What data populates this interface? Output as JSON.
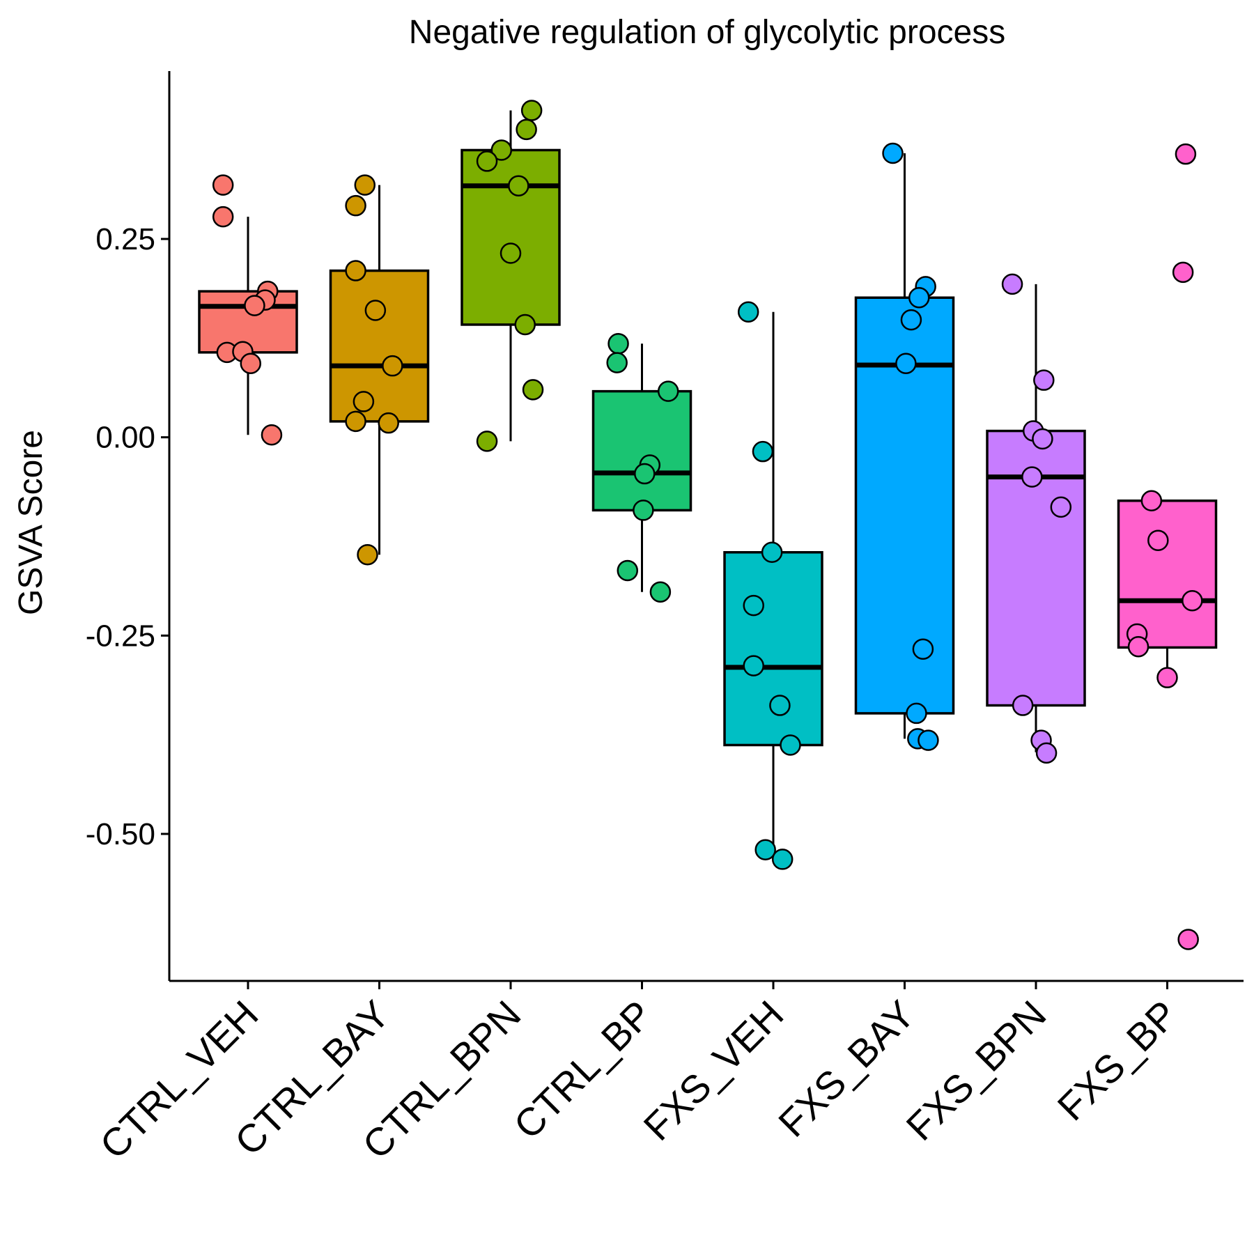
{
  "chart_data": {
    "type": "box",
    "title": "Negative regulation of glycolytic process",
    "xlabel": "",
    "ylabel": "GSVA Score",
    "ylim": [
      -0.68,
      0.47
    ],
    "yticks": [
      0.25,
      0.0,
      -0.25,
      -0.5
    ],
    "ytick_labels": [
      "0.25",
      "0.00",
      "-0.25",
      "-0.50"
    ],
    "grid": false,
    "legend": "none",
    "categories": [
      "CTRL_VEH",
      "CTRL_BAY",
      "CTRL_BPN",
      "CTRL_BP",
      "FXS_VEH",
      "FXS_BAY",
      "FXS_BPN",
      "FXS_BP"
    ],
    "groups": [
      {
        "name": "CTRL_VEH",
        "color": "#F8766D",
        "box": {
          "whisker_low": 0.003,
          "q1": 0.107,
          "median": 0.165,
          "q3": 0.184,
          "whisker_high": 0.278
        },
        "points": [
          {
            "x": -0.19,
            "y": 0.318
          },
          {
            "x": -0.19,
            "y": 0.278
          },
          {
            "x": 0.15,
            "y": 0.184
          },
          {
            "x": 0.13,
            "y": 0.173
          },
          {
            "x": 0.05,
            "y": 0.166
          },
          {
            "x": -0.16,
            "y": 0.107
          },
          {
            "x": -0.04,
            "y": 0.108
          },
          {
            "x": 0.02,
            "y": 0.093
          },
          {
            "x": 0.18,
            "y": 0.003
          }
        ]
      },
      {
        "name": "CTRL_BAY",
        "color": "#CD9600",
        "box": {
          "whisker_low": -0.148,
          "q1": 0.02,
          "median": 0.09,
          "q3": 0.21,
          "whisker_high": 0.318
        },
        "points": [
          {
            "x": -0.11,
            "y": 0.318
          },
          {
            "x": -0.18,
            "y": 0.292
          },
          {
            "x": -0.18,
            "y": 0.21
          },
          {
            "x": -0.03,
            "y": 0.16
          },
          {
            "x": 0.1,
            "y": 0.09
          },
          {
            "x": -0.12,
            "y": 0.045
          },
          {
            "x": -0.18,
            "y": 0.02
          },
          {
            "x": 0.07,
            "y": 0.018
          },
          {
            "x": -0.09,
            "y": -0.148
          }
        ]
      },
      {
        "name": "CTRL_BPN",
        "color": "#7CAE00",
        "box": {
          "whisker_low": -0.005,
          "q1": 0.142,
          "median": 0.317,
          "q3": 0.362,
          "whisker_high": 0.412
        },
        "points": [
          {
            "x": 0.16,
            "y": 0.412
          },
          {
            "x": 0.12,
            "y": 0.388
          },
          {
            "x": -0.07,
            "y": 0.362
          },
          {
            "x": -0.18,
            "y": 0.348
          },
          {
            "x": 0.06,
            "y": 0.317
          },
          {
            "x": 0.0,
            "y": 0.232
          },
          {
            "x": 0.11,
            "y": 0.142
          },
          {
            "x": 0.17,
            "y": 0.06
          },
          {
            "x": -0.18,
            "y": -0.005
          }
        ]
      },
      {
        "name": "CTRL_BP",
        "color": "#0CB702",
        "fill": "#1AC472",
        "box": {
          "whisker_low": -0.195,
          "q1": -0.092,
          "median": -0.045,
          "q3": 0.058,
          "whisker_high": 0.118
        },
        "points": [
          {
            "x": -0.18,
            "y": 0.118
          },
          {
            "x": -0.19,
            "y": 0.094
          },
          {
            "x": 0.2,
            "y": 0.058
          },
          {
            "x": 0.06,
            "y": -0.035
          },
          {
            "x": 0.02,
            "y": -0.046
          },
          {
            "x": 0.01,
            "y": -0.092
          },
          {
            "x": -0.11,
            "y": -0.168
          },
          {
            "x": 0.14,
            "y": -0.195
          }
        ]
      },
      {
        "name": "FXS_VEH",
        "color": "#00BFC4",
        "box": {
          "whisker_low": -0.52,
          "q1": -0.388,
          "median": -0.29,
          "q3": -0.145,
          "whisker_high": 0.158
        },
        "points": [
          {
            "x": -0.19,
            "y": 0.158
          },
          {
            "x": -0.08,
            "y": -0.018
          },
          {
            "x": -0.01,
            "y": -0.145
          },
          {
            "x": -0.15,
            "y": -0.212
          },
          {
            "x": -0.15,
            "y": -0.288
          },
          {
            "x": 0.05,
            "y": -0.338
          },
          {
            "x": 0.13,
            "y": -0.388
          },
          {
            "x": -0.06,
            "y": -0.52
          },
          {
            "x": 0.07,
            "y": -0.532
          }
        ]
      },
      {
        "name": "FXS_BAY",
        "color": "#00A9FF",
        "box": {
          "whisker_low": -0.38,
          "q1": -0.348,
          "median": 0.091,
          "q3": 0.176,
          "whisker_high": 0.358
        },
        "points": [
          {
            "x": -0.09,
            "y": 0.358
          },
          {
            "x": 0.16,
            "y": 0.19
          },
          {
            "x": 0.11,
            "y": 0.176
          },
          {
            "x": 0.05,
            "y": 0.148
          },
          {
            "x": 0.01,
            "y": 0.093
          },
          {
            "x": 0.14,
            "y": -0.267
          },
          {
            "x": 0.09,
            "y": -0.348
          },
          {
            "x": 0.1,
            "y": -0.38
          },
          {
            "x": 0.18,
            "y": -0.382
          }
        ]
      },
      {
        "name": "FXS_BPN",
        "color": "#C77CFF",
        "box": {
          "whisker_low": -0.397,
          "q1": -0.338,
          "median": -0.05,
          "q3": 0.008,
          "whisker_high": 0.193
        },
        "points": [
          {
            "x": -0.18,
            "y": 0.193
          },
          {
            "x": 0.06,
            "y": 0.072
          },
          {
            "x": -0.02,
            "y": 0.008
          },
          {
            "x": 0.05,
            "y": -0.002
          },
          {
            "x": -0.03,
            "y": -0.05
          },
          {
            "x": 0.19,
            "y": -0.088
          },
          {
            "x": -0.1,
            "y": -0.338
          },
          {
            "x": 0.04,
            "y": -0.382
          },
          {
            "x": 0.08,
            "y": -0.398
          }
        ]
      },
      {
        "name": "FXS_BP",
        "color": "#FF61CC",
        "box": {
          "whisker_low": -0.303,
          "q1": -0.265,
          "median": -0.206,
          "q3": -0.08,
          "whisker_high": -0.08
        },
        "points": [
          {
            "x": 0.14,
            "y": 0.357
          },
          {
            "x": 0.12,
            "y": 0.208
          },
          {
            "x": -0.12,
            "y": -0.08
          },
          {
            "x": -0.07,
            "y": -0.13
          },
          {
            "x": 0.19,
            "y": -0.206
          },
          {
            "x": -0.23,
            "y": -0.248
          },
          {
            "x": -0.22,
            "y": -0.264
          },
          {
            "x": 0.0,
            "y": -0.303
          },
          {
            "x": 0.16,
            "y": -0.633
          }
        ]
      }
    ]
  }
}
